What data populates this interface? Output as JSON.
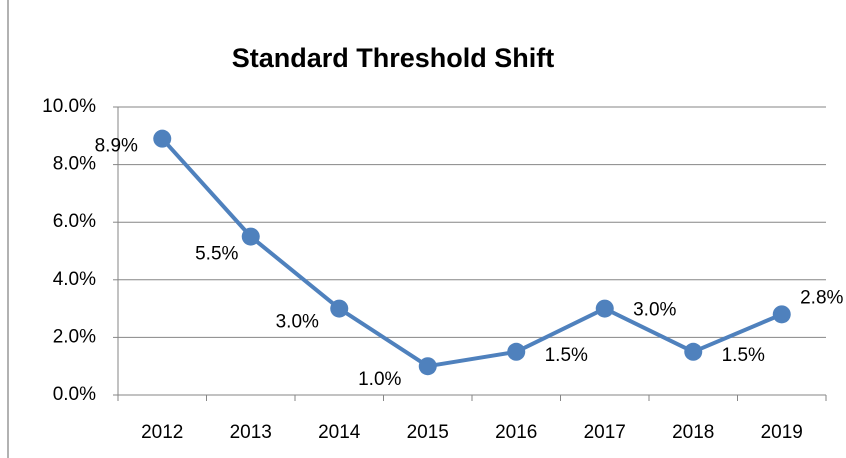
{
  "chart_data": {
    "type": "line",
    "title": "Standard Threshold Shift",
    "categories": [
      "2012",
      "2013",
      "2014",
      "2015",
      "2016",
      "2017",
      "2018",
      "2019"
    ],
    "series": [
      {
        "name": "Standard Threshold Shift",
        "color": "#4f81bd",
        "values": [
          8.9,
          5.5,
          3.0,
          1.0,
          1.5,
          3.0,
          1.5,
          2.8
        ],
        "value_labels": [
          "8.9%",
          "5.5%",
          "3.0%",
          "1.0%",
          "1.5%",
          "3.0%",
          "1.5%",
          "2.8%"
        ]
      }
    ],
    "ylim": [
      0,
      10
    ],
    "yticks": [
      {
        "value": 0,
        "label": "0.0%"
      },
      {
        "value": 2,
        "label": "2.0%"
      },
      {
        "value": 4,
        "label": "4.0%"
      },
      {
        "value": 6,
        "label": "6.0%"
      },
      {
        "value": 8,
        "label": "8.0%"
      },
      {
        "value": 10,
        "label": "10.0%"
      }
    ],
    "grid": true
  }
}
